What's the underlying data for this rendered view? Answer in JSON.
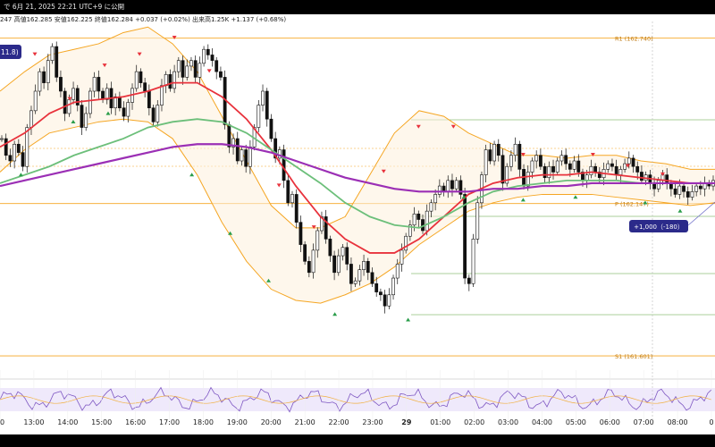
{
  "header": {
    "top_text": "で 6月 21, 2025 22:21 UTC+9 に公開",
    "info_line": "247  高値162.285  安値162.225  終値162.284  +0.037 (+0.02%)  出来高1.25K  +1.137 (+0.68%)"
  },
  "badges": {
    "left_value": "11.8)",
    "position_label": "+1,000（-180）"
  },
  "chart_data": {
    "type": "line",
    "subtype": "candlestick-with-overlays",
    "x_ticks": [
      "00",
      "13:00",
      "14:00",
      "15:00",
      "16:00",
      "17:00",
      "18:00",
      "19:00",
      "20:00",
      "21:00",
      "22:00",
      "23:00",
      "29",
      "01:00",
      "02:00",
      "03:00",
      "04:00",
      "05:00",
      "06:00",
      "07:00",
      "08:00",
      "0"
    ],
    "bold_tick": "29",
    "y_range": [
      161.55,
      162.8
    ],
    "levels": [
      {
        "label": "R1 (162.740)",
        "value": 162.74,
        "color": "#f5a623",
        "style": "solid"
      },
      {
        "label": "P (162.147)",
        "value": 162.147,
        "color": "#f5a623",
        "style": "solid"
      },
      {
        "label": "S1 (161.601)",
        "value": 161.601,
        "color": "#f5a623",
        "style": "solid"
      }
    ],
    "series": [
      {
        "kind": "candles",
        "color": "#111111",
        "closes": [
          162.38,
          162.32,
          162.3,
          162.36,
          162.33,
          162.28,
          162.42,
          162.48,
          162.55,
          162.62,
          162.58,
          162.66,
          162.71,
          162.6,
          162.55,
          162.47,
          162.52,
          162.56,
          162.5,
          162.42,
          162.47,
          162.55,
          162.6,
          162.55,
          162.52,
          162.56,
          162.49,
          162.53,
          162.49,
          162.46,
          162.51,
          162.56,
          162.62,
          162.58,
          162.55,
          162.49,
          162.44,
          162.5,
          162.57,
          162.61,
          162.56,
          162.62,
          162.66,
          162.6,
          162.64,
          162.66,
          162.6,
          162.65,
          162.7,
          162.68,
          162.66,
          162.62,
          162.6,
          162.43,
          162.35,
          162.38,
          162.3,
          162.34,
          162.28,
          162.35,
          162.42,
          162.5,
          162.55,
          162.45,
          162.38,
          162.31,
          162.34,
          162.23,
          162.15,
          162.18,
          162.08,
          162.0,
          161.94,
          161.9,
          161.98,
          162.05,
          162.1,
          162.02,
          161.96,
          161.9,
          161.96,
          161.99,
          161.93,
          161.86,
          161.87,
          161.91,
          161.94,
          161.9,
          161.86,
          161.83,
          161.82,
          161.78,
          161.82,
          161.88,
          161.93,
          161.98,
          162.03,
          162.07,
          162.11,
          162.09,
          162.05,
          162.12,
          162.15,
          162.18,
          162.21,
          162.19,
          162.23,
          162.2,
          162.23,
          162.18,
          161.88,
          161.86,
          162.02,
          162.15,
          162.25,
          162.34,
          162.3,
          162.36,
          162.32,
          162.22,
          162.28,
          162.32,
          162.36,
          162.27,
          162.21,
          162.26,
          162.3,
          162.32,
          162.28,
          162.24,
          162.28,
          162.26,
          162.3,
          162.32,
          162.29,
          162.27,
          162.3,
          162.26,
          162.23,
          162.25,
          162.28,
          162.26,
          162.24,
          162.27,
          162.29,
          162.28,
          162.25,
          162.27,
          162.29,
          162.31,
          162.28,
          162.26,
          162.23,
          162.25,
          162.22,
          162.2,
          162.23,
          162.25,
          162.22,
          162.2,
          162.18,
          162.21,
          162.19,
          162.17,
          162.19,
          162.21,
          162.2,
          162.22,
          162.21,
          162.23
        ]
      },
      {
        "kind": "ma",
        "name": "",
        "color": "#e8323c",
        "values": [
          162.35,
          162.4,
          162.47,
          162.51,
          162.52,
          162.53,
          162.55,
          162.58,
          162.58,
          162.53,
          162.45,
          162.34,
          162.21,
          162.1,
          162.02,
          161.97,
          161.97,
          162.02,
          162.1,
          162.18,
          162.22,
          162.24,
          162.25,
          162.25,
          162.26,
          162.25,
          162.24,
          162.23,
          162.22,
          162.22
        ]
      },
      {
        "kind": "ma",
        "name": "",
        "color": "#6cbf7a",
        "values": [
          162.22,
          162.25,
          162.28,
          162.32,
          162.35,
          162.38,
          162.42,
          162.44,
          162.45,
          162.44,
          162.4,
          162.34,
          162.28,
          162.22,
          162.15,
          162.1,
          162.07,
          162.06,
          162.1,
          162.15,
          162.19,
          162.21,
          162.22,
          162.23,
          162.23,
          162.23,
          162.22,
          162.22,
          162.22,
          162.22
        ]
      },
      {
        "kind": "ma",
        "name": "",
        "color": "#9b2fb5",
        "values": [
          162.21,
          162.23,
          162.25,
          162.27,
          162.29,
          162.31,
          162.33,
          162.35,
          162.36,
          162.36,
          162.35,
          162.33,
          162.3,
          162.27,
          162.24,
          162.22,
          162.2,
          162.19,
          162.19,
          162.19,
          162.2,
          162.2,
          162.21,
          162.21,
          162.22,
          162.22,
          162.22,
          162.22,
          162.22,
          162.22
        ]
      },
      {
        "kind": "band-upper",
        "color": "#f5a623",
        "values": [
          162.55,
          162.62,
          162.68,
          162.7,
          162.72,
          162.76,
          162.78,
          162.72,
          162.62,
          162.46,
          162.3,
          162.14,
          162.06,
          162.06,
          162.1,
          162.25,
          162.4,
          162.48,
          162.46,
          162.4,
          162.36,
          162.32,
          162.32,
          162.31,
          162.32,
          162.32,
          162.3,
          162.29,
          162.27,
          162.27
        ]
      },
      {
        "kind": "band-lower",
        "color": "#f5a623",
        "values": [
          162.26,
          162.34,
          162.4,
          162.42,
          162.44,
          162.45,
          162.44,
          162.38,
          162.25,
          162.08,
          161.94,
          161.84,
          161.8,
          161.79,
          161.82,
          161.86,
          161.92,
          162.0,
          162.06,
          162.12,
          162.15,
          162.17,
          162.18,
          162.18,
          162.18,
          162.17,
          162.16,
          162.15,
          162.14,
          162.15
        ]
      }
    ],
    "zigzag_peaks": [
      [
        1,
        162.66
      ],
      [
        2,
        162.5
      ],
      [
        3,
        162.62
      ],
      [
        4,
        162.66
      ],
      [
        5,
        162.72
      ],
      [
        6,
        162.6
      ],
      [
        8,
        162.19
      ],
      [
        9,
        162.04
      ],
      [
        11,
        162.24
      ],
      [
        12,
        162.4
      ],
      [
        13,
        162.4
      ],
      [
        15,
        162.3
      ],
      [
        17,
        162.3
      ],
      [
        18,
        162.26
      ],
      [
        19,
        162.23
      ]
    ],
    "zigzag_troughs": [
      [
        0.6,
        162.28
      ],
      [
        2.1,
        162.47
      ],
      [
        3.1,
        162.5
      ],
      [
        5.5,
        162.28
      ],
      [
        6.6,
        162.07
      ],
      [
        7.7,
        161.9
      ],
      [
        9.6,
        161.78
      ],
      [
        11.7,
        161.76
      ],
      [
        13.3,
        162.2
      ],
      [
        15.0,
        162.19
      ],
      [
        16.5,
        162.2
      ],
      [
        18.5,
        162.18
      ],
      [
        19.5,
        162.15
      ]
    ],
    "rsi_panel": {
      "y_range": [
        0,
        100
      ],
      "levels": [
        30,
        70
      ]
    }
  }
}
